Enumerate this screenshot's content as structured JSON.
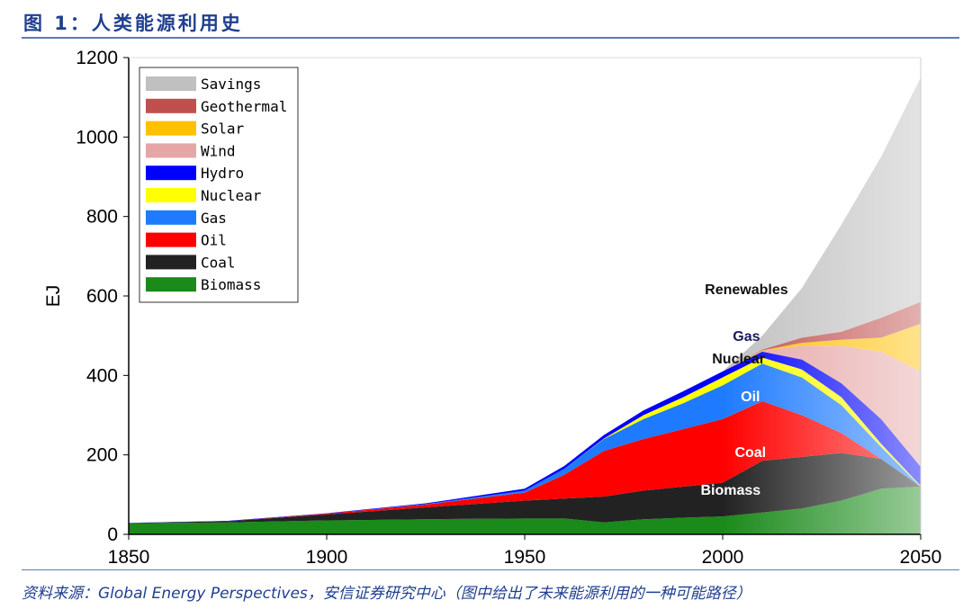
{
  "title": "图 1：人类能源利用史",
  "source": "资料来源：Global Energy Perspectives，安信证券研究中心（图中给出了未来能源利用的一种可能路径）",
  "chart_data": {
    "type": "area",
    "stacked": true,
    "title": "人类能源利用史",
    "xlabel": "",
    "ylabel": "EJ",
    "xlim": [
      1850,
      2050
    ],
    "ylim": [
      0,
      1200
    ],
    "xticks": [
      1850,
      1900,
      1950,
      2000,
      2050
    ],
    "yticks": [
      0,
      200,
      400,
      600,
      800,
      1000,
      1200
    ],
    "legend_position": "top-left",
    "x": [
      1850,
      1875,
      1900,
      1925,
      1950,
      1960,
      1970,
      1980,
      1990,
      2000,
      2010,
      2020,
      2030,
      2040,
      2050
    ],
    "series": [
      {
        "name": "Biomass",
        "color": "#1a8a1a",
        "values": [
          28,
          30,
          35,
          38,
          40,
          40,
          30,
          38,
          42,
          45,
          55,
          65,
          85,
          115,
          120
        ]
      },
      {
        "name": "Coal",
        "color": "#222222",
        "values": [
          0.5,
          3,
          15,
          30,
          45,
          50,
          65,
          72,
          78,
          85,
          130,
          130,
          120,
          75,
          0
        ]
      },
      {
        "name": "Oil",
        "color": "#ff0000",
        "values": [
          0,
          0,
          2,
          7,
          20,
          60,
          115,
          130,
          145,
          160,
          150,
          105,
          50,
          0,
          0
        ]
      },
      {
        "name": "Gas",
        "color": "#1e7bff",
        "values": [
          0,
          0,
          0,
          1,
          5,
          15,
          30,
          50,
          65,
          85,
          95,
          95,
          70,
          30,
          0
        ]
      },
      {
        "name": "Nuclear",
        "color": "#ffff00",
        "values": [
          0,
          0,
          0,
          0,
          0,
          0,
          1,
          10,
          15,
          20,
          15,
          20,
          20,
          8,
          2
        ]
      },
      {
        "name": "Hydro",
        "color": "#0000ff",
        "values": [
          0.5,
          1,
          1,
          2,
          5,
          7,
          9,
          12,
          15,
          15,
          15,
          25,
          35,
          62,
          48
        ]
      },
      {
        "name": "Wind",
        "color": "#e6a6a6",
        "values": [
          0,
          0,
          0,
          0,
          0,
          0,
          0,
          0,
          0,
          0,
          2,
          35,
          95,
          170,
          240
        ]
      },
      {
        "name": "Solar",
        "color": "#ffc000",
        "values": [
          0,
          0,
          0,
          0,
          0,
          0,
          0,
          0,
          0,
          0,
          1,
          7,
          15,
          35,
          120
        ]
      },
      {
        "name": "Geothermal",
        "color": "#c0504d",
        "values": [
          0,
          0,
          0,
          0,
          0,
          0,
          0,
          0,
          0,
          0,
          2,
          13,
          20,
          50,
          55
        ]
      },
      {
        "name": "Savings",
        "color": "#c0c0c0",
        "values": [
          0,
          0,
          0,
          0,
          0,
          0,
          0,
          0,
          0,
          0,
          35,
          125,
          270,
          405,
          565
        ]
      }
    ],
    "annotations": [
      {
        "text": "Renewables",
        "x": 2006,
        "y": 605,
        "color": "#111111"
      },
      {
        "text": "Gas",
        "x": 2006,
        "y": 487,
        "color": "#1a1a5a"
      },
      {
        "text": "Nuclear",
        "x": 2004,
        "y": 430,
        "color": "#111111"
      },
      {
        "text": "Oil",
        "x": 2007,
        "y": 335,
        "color": "#ffffff"
      },
      {
        "text": "Coal",
        "x": 2007,
        "y": 195,
        "color": "#ffffff"
      },
      {
        "text": "Biomass",
        "x": 2002,
        "y": 100,
        "color": "#ffffff"
      }
    ]
  }
}
